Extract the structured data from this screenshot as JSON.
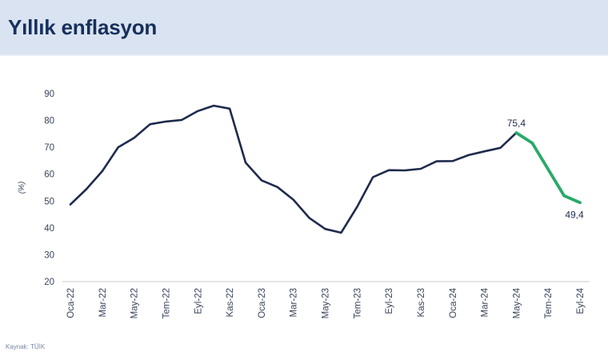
{
  "header": {
    "title": "Yıllık enflasyon"
  },
  "source": {
    "label": "Kaynak: TÜİK"
  },
  "colors": {
    "header_bg": "#dae3f1",
    "title_text": "#16305c",
    "line_main": "#1f2b4d",
    "line_highlight": "#29a969",
    "axis_text": "#39455c",
    "baseline": "#c9c9c9",
    "source_text": "#7787a8"
  },
  "chart_data": {
    "type": "line",
    "title": "Yıllık enflasyon",
    "ylabel": "(%)",
    "ylim": [
      20,
      90
    ],
    "y_ticks": [
      90,
      80,
      70,
      60,
      50,
      40,
      30,
      20
    ],
    "grid": false,
    "legend": false,
    "x_tick_step": 2,
    "x_tick_labels_visible": [
      "Oca-22",
      "Mar-22",
      "May-22",
      "Tem-22",
      "Eyl-22",
      "Kas-22",
      "Oca-23",
      "Mar-23",
      "May-23",
      "Tem-23",
      "Eyl-23",
      "Kas-23",
      "Oca-24",
      "Mar-24",
      "May-24",
      "Tem-24",
      "Eyl-24"
    ],
    "x": [
      "Oca-22",
      "Şub-22",
      "Mar-22",
      "Nis-22",
      "May-22",
      "Haz-22",
      "Tem-22",
      "Ağu-22",
      "Eyl-22",
      "Eki-22",
      "Kas-22",
      "Ara-22",
      "Oca-23",
      "Şub-23",
      "Mar-23",
      "Nis-23",
      "May-23",
      "Haz-23",
      "Tem-23",
      "Ağu-23",
      "Eyl-23",
      "Eki-23",
      "Kas-23",
      "Ara-23",
      "Oca-24",
      "Şub-24",
      "Mar-24",
      "Nis-24",
      "May-24",
      "Haz-24",
      "Tem-24",
      "Ağu-24",
      "Eyl-24"
    ],
    "values": [
      48.7,
      54.4,
      61.1,
      70.0,
      73.5,
      78.6,
      79.6,
      80.2,
      83.5,
      85.5,
      84.4,
      64.3,
      57.7,
      55.2,
      50.5,
      43.7,
      39.6,
      38.2,
      47.8,
      58.9,
      61.5,
      61.4,
      62.0,
      64.8,
      64.9,
      67.1,
      68.5,
      69.8,
      75.4,
      71.6,
      61.8,
      52.0,
      49.4
    ],
    "highlight_start_index": 28,
    "annotations": [
      {
        "label": "75,4",
        "index": 28,
        "position": "above"
      },
      {
        "label": "49,4",
        "index": 32,
        "position": "below"
      }
    ]
  }
}
